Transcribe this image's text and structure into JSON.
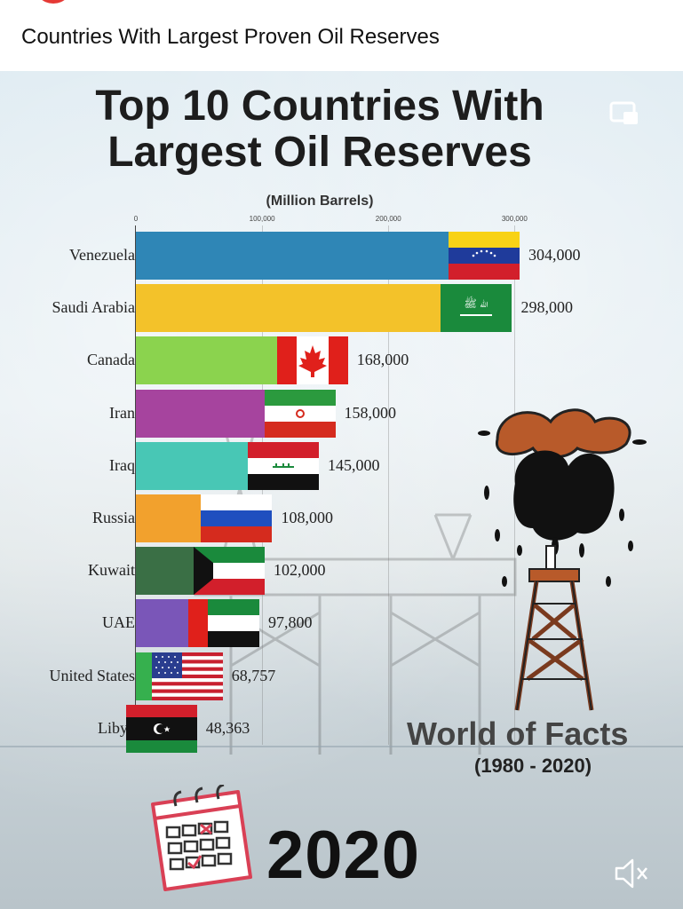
{
  "header": {
    "video_title": "Countries With Largest Proven Oil Reserves"
  },
  "chart_data": {
    "type": "bar",
    "orientation": "horizontal",
    "title": "Top 10 Countries With Largest Oil Reserves",
    "unit_label": "(Million Barrels)",
    "xlim": [
      0,
      304000
    ],
    "ticks": [
      {
        "value": 0,
        "label": "0"
      },
      {
        "value": 100000,
        "label": "100,000"
      },
      {
        "value": 200000,
        "label": "200,000"
      },
      {
        "value": 300000,
        "label": "300,000"
      }
    ],
    "categories": [
      "Venezuela",
      "Saudi Arabia",
      "Canada",
      "Iran",
      "Iraq",
      "Russia",
      "Kuwait",
      "UAE",
      "United States",
      "Libya"
    ],
    "values": [
      304000,
      298000,
      168000,
      158000,
      145000,
      108000,
      102000,
      97800,
      68757,
      48363
    ],
    "value_labels": [
      "304,000",
      "298,000",
      "168,000",
      "158,000",
      "145,000",
      "108,000",
      "102,000",
      "97,800",
      "68,757",
      "48,363"
    ],
    "colors": [
      "#2f86b6",
      "#f3c22a",
      "#8bd34e",
      "#a6449e",
      "#48c7b5",
      "#f2a12d",
      "#3a6f45",
      "#7a56b8",
      "#36b04e",
      "#c05ac0"
    ],
    "flags": [
      "venezuela",
      "saudi-arabia",
      "canada",
      "iran",
      "iraq",
      "russia",
      "kuwait",
      "uae",
      "united-states",
      "libya"
    ],
    "legend": "none",
    "grid": true
  },
  "branding": {
    "name": "World of Facts",
    "years": "(1980 - 2020)",
    "current_year": "2020"
  },
  "icons": {
    "cast": "cast-icon",
    "mute": "mute-icon",
    "calendar": "calendar-icon"
  }
}
